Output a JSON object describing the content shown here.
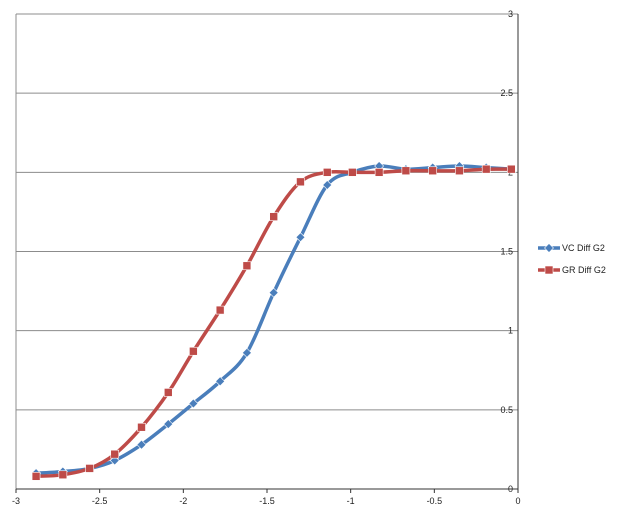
{
  "chart_data": {
    "type": "line",
    "title": "",
    "xlabel": "",
    "ylabel": "",
    "xlim": [
      -3,
      0
    ],
    "ylim": [
      0,
      3
    ],
    "x_ticks": [
      "-3",
      "-2.5",
      "-2",
      "-1.5",
      "-1",
      "-0.5",
      "0"
    ],
    "y_ticks": [
      "0",
      "0.5",
      "1",
      "1.5",
      "2",
      "2.5",
      "3"
    ],
    "y_axis_side": "right",
    "grid": "horizontal",
    "legend_position": "right",
    "series": [
      {
        "name": "VC Diff G2",
        "color": "#4a7ebb",
        "marker": "diamond",
        "x": [
          -2.88,
          -2.72,
          -2.56,
          -2.41,
          -2.25,
          -2.09,
          -1.94,
          -1.78,
          -1.62,
          -1.46,
          -1.3,
          -1.14,
          -0.99,
          -0.83,
          -0.67,
          -0.51,
          -0.35,
          -0.19,
          -0.04
        ],
        "y": [
          0.1,
          0.11,
          0.13,
          0.18,
          0.28,
          0.41,
          0.54,
          0.68,
          0.86,
          1.24,
          1.59,
          1.92,
          2.0,
          2.04,
          2.02,
          2.03,
          2.04,
          2.03,
          2.02
        ]
      },
      {
        "name": "GR Diff G2",
        "color": "#be4b48",
        "marker": "square",
        "x": [
          -2.88,
          -2.72,
          -2.56,
          -2.41,
          -2.25,
          -2.09,
          -1.94,
          -1.78,
          -1.62,
          -1.46,
          -1.3,
          -1.14,
          -0.99,
          -0.83,
          -0.67,
          -0.51,
          -0.35,
          -0.19,
          -0.04
        ],
        "y": [
          0.08,
          0.09,
          0.13,
          0.22,
          0.39,
          0.61,
          0.87,
          1.13,
          1.41,
          1.72,
          1.94,
          2.0,
          2.0,
          2.0,
          2.01,
          2.01,
          2.01,
          2.02,
          2.02
        ]
      }
    ]
  }
}
